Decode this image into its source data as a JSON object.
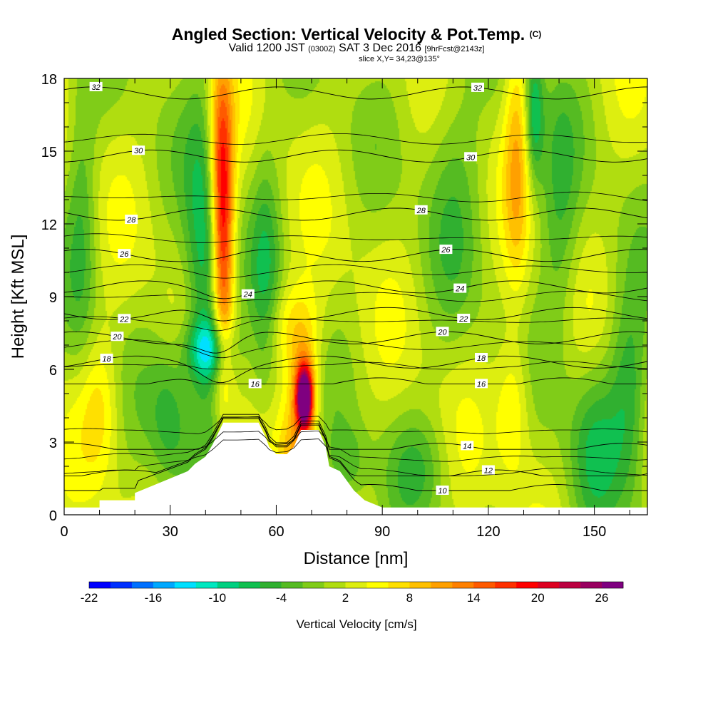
{
  "title": {
    "main": "Angled Section: Vertical Velocity & Pot.Temp.",
    "suffix": "(C)",
    "valid_prefix": "Valid 1200 JST",
    "valid_z": "(0300Z)",
    "valid_date": "SAT 3 Dec 2016",
    "valid_fcst": "[9hrFcst@2143z]",
    "slice": "slice X,Y= 34,23@135°"
  },
  "chart_data": {
    "type": "heatmap",
    "xlabel": "Distance [nm]",
    "ylabel": "Height [Kft MSL]",
    "xlim": [
      0,
      165
    ],
    "ylim": [
      0,
      18
    ],
    "xticks": [
      0,
      30,
      60,
      90,
      120,
      150
    ],
    "yticks": [
      0,
      3,
      6,
      9,
      12,
      15,
      18
    ],
    "colorbar": {
      "title": "Vertical Velocity [cm/s]",
      "min": -22,
      "max": 28,
      "step": 2,
      "tick_labels": [
        "-22",
        "-16",
        "-10",
        "-4",
        "2",
        "8",
        "14",
        "20",
        "26"
      ],
      "colors": [
        "#0000ff",
        "#0030ff",
        "#0070ff",
        "#00a8ff",
        "#00e0ff",
        "#00e8c0",
        "#00d080",
        "#10c050",
        "#30b030",
        "#55bb22",
        "#80cc18",
        "#b0dd10",
        "#ddee10",
        "#ffff00",
        "#ffe000",
        "#ffc000",
        "#ffa000",
        "#ff8000",
        "#ff5a00",
        "#ff3000",
        "#ff0000",
        "#dd0020",
        "#bb0040",
        "#990060",
        "#7f0080"
      ]
    },
    "terrain": [
      [
        0,
        0.3
      ],
      [
        10,
        0.3
      ],
      [
        10,
        0.6
      ],
      [
        20,
        0.6
      ],
      [
        20,
        0.9
      ],
      [
        25,
        1.2
      ],
      [
        30,
        1.5
      ],
      [
        35,
        1.8
      ],
      [
        37,
        2.1
      ],
      [
        40,
        2.4
      ],
      [
        42,
        2.9
      ],
      [
        43,
        3.2
      ],
      [
        45,
        3.8
      ],
      [
        55,
        3.8
      ],
      [
        57,
        3.2
      ],
      [
        58,
        2.8
      ],
      [
        60,
        2.5
      ],
      [
        63,
        2.5
      ],
      [
        65,
        2.8
      ],
      [
        67,
        3.5
      ],
      [
        72,
        3.5
      ],
      [
        74,
        2.8
      ],
      [
        75,
        2.0
      ],
      [
        78,
        1.8
      ],
      [
        80,
        1.4
      ],
      [
        82,
        1.0
      ],
      [
        85,
        0.6
      ],
      [
        90,
        0.3
      ],
      [
        165,
        0.3
      ]
    ],
    "velocity_features": [
      {
        "x": 45,
        "y": 11,
        "sx": 2.2,
        "sy": 4.0,
        "w": 17
      },
      {
        "x": 44,
        "y": 15,
        "sx": 2.5,
        "sy": 3.0,
        "w": 9
      },
      {
        "x": 68,
        "y": 4.8,
        "sx": 1.6,
        "sy": 0.9,
        "w": 28
      },
      {
        "x": 68,
        "y": 5.2,
        "sx": 3.0,
        "sy": 1.8,
        "w": 9
      },
      {
        "x": 40,
        "y": 10,
        "sx": 4.0,
        "sy": 5.0,
        "w": -10
      },
      {
        "x": 41,
        "y": 6.8,
        "sx": 4.5,
        "sy": 0.9,
        "w": -11
      },
      {
        "x": 128,
        "y": 15,
        "sx": 2.5,
        "sy": 4.0,
        "w": 7
      },
      {
        "x": 133,
        "y": 16.5,
        "sx": 1.8,
        "sy": 2.0,
        "w": -9
      },
      {
        "x": 64,
        "y": 7.8,
        "sx": 6.0,
        "sy": 1.3,
        "w": 5
      },
      {
        "x": 57,
        "y": 9.5,
        "sx": 3.0,
        "sy": 4.0,
        "w": -6
      },
      {
        "x": 30,
        "y": 4,
        "sx": 4.0,
        "sy": 2.0,
        "w": -6
      },
      {
        "x": 150,
        "y": 3,
        "sx": 5.0,
        "sy": 2.5,
        "w": -6
      },
      {
        "x": 160,
        "y": 5,
        "sx": 4.0,
        "sy": 3.0,
        "w": -7
      },
      {
        "x": 5,
        "y": 12,
        "sx": 3.0,
        "sy": 4.0,
        "w": -5
      },
      {
        "x": 140,
        "y": 12,
        "sx": 4.0,
        "sy": 4.0,
        "w": -5
      },
      {
        "x": 127,
        "y": 4.5,
        "sx": 3.5,
        "sy": 2.0,
        "w": 6
      },
      {
        "x": 10,
        "y": 4.5,
        "sx": 4.0,
        "sy": 2.0,
        "w": 5
      },
      {
        "x": 110,
        "y": 14,
        "sx": 6.0,
        "sy": 4.0,
        "w": -4
      },
      {
        "x": 65,
        "y": 2,
        "sx": 3.0,
        "sy": 1.5,
        "w": 6
      },
      {
        "x": 80,
        "y": 2,
        "sx": 4.0,
        "sy": 1.2,
        "w": -5
      },
      {
        "x": 100,
        "y": 2,
        "sx": 6.0,
        "sy": 1.5,
        "w": -4
      }
    ],
    "theta_contours": [
      {
        "theta": 10,
        "base": 1.0,
        "label_x": 107
      },
      {
        "theta": 12,
        "base": 1.6,
        "label_x": 120
      },
      {
        "theta": 14,
        "base": 2.7,
        "label_x": 114
      },
      {
        "theta": 16,
        "base": 5.4,
        "label_x": 118,
        "label_x2": 54
      },
      {
        "theta": 18,
        "base": 6.3,
        "label_x": 118,
        "label_x2": 12
      },
      {
        "theta": 20,
        "base": 7.3,
        "label_x": 107,
        "label_x2": 15
      },
      {
        "theta": 22,
        "base": 8.3,
        "label_x": 113,
        "label_x2": 17
      },
      {
        "theta": 24,
        "base": 9.4,
        "label_x": 112,
        "label_x2": 52
      },
      {
        "theta": 26,
        "base": 10.7,
        "label_x": 108,
        "label_x2": 17
      },
      {
        "theta": 28,
        "base": 12.4,
        "label_x": 101,
        "label_x2": 19
      },
      {
        "theta": 30,
        "base": 14.8,
        "label_x": 115,
        "label_x2": 21
      },
      {
        "theta": 32,
        "base": 17.4,
        "label_x": 117,
        "label_x2": 9
      }
    ]
  }
}
